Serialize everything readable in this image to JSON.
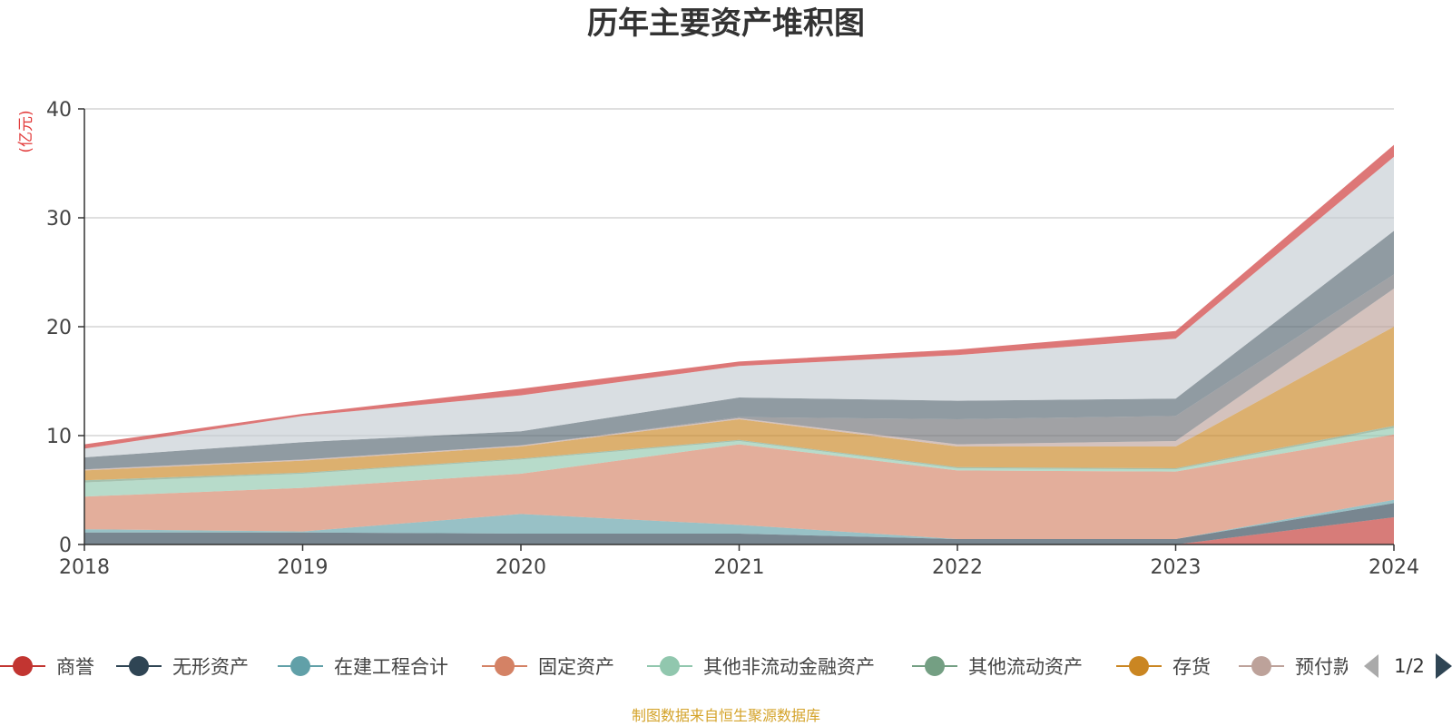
{
  "title": "历年主要资产堆积图",
  "unit_label": "(亿元)",
  "source_note": "制图数据来自恒生聚源数据库",
  "legend_page": "1/2",
  "chart_data": {
    "type": "area",
    "stacked": true,
    "title": "历年主要资产堆积图",
    "ylabel": "(亿元)",
    "xlabel": "",
    "categories": [
      "2018",
      "2019",
      "2020",
      "2021",
      "2022",
      "2023",
      "2024"
    ],
    "ylim": [
      0,
      40
    ],
    "yticks": [
      0,
      10,
      20,
      30,
      40
    ],
    "grid": true,
    "legend_position": "bottom",
    "series": [
      {
        "name": "商誉",
        "color": "#c23531",
        "legend": true,
        "values": [
          0,
          0,
          0,
          0,
          0,
          0,
          2.5
        ]
      },
      {
        "name": "无形资产",
        "color": "#2f4554",
        "legend": true,
        "values": [
          1.1,
          1.1,
          1.0,
          1.0,
          0.5,
          0.5,
          1.3
        ]
      },
      {
        "name": "在建工程合计",
        "color": "#61a0a8",
        "legend": true,
        "values": [
          0.3,
          0.1,
          1.8,
          0.8,
          0,
          0,
          0.3
        ]
      },
      {
        "name": "固定资产",
        "color": "#d48265",
        "legend": true,
        "values": [
          3.0,
          4.0,
          3.7,
          7.4,
          6.3,
          6.2,
          6.0
        ]
      },
      {
        "name": "其他非流动金融资产",
        "color": "#91c7ae",
        "legend": true,
        "values": [
          1.3,
          1.3,
          1.3,
          0.3,
          0.2,
          0.2,
          0.6
        ]
      },
      {
        "name": "其他流动资产",
        "color": "#749f83",
        "legend": true,
        "values": [
          0.2,
          0.1,
          0.1,
          0.1,
          0.1,
          0.1,
          0.2
        ]
      },
      {
        "name": "存货",
        "color": "#ca8622",
        "legend": true,
        "values": [
          0.9,
          1.1,
          1.1,
          1.9,
          1.9,
          2.0,
          9.1
        ]
      },
      {
        "name": "预付款项",
        "color": "#bda29a",
        "legend": true,
        "values": [
          0.1,
          0.1,
          0.1,
          0.1,
          0.2,
          0.5,
          3.5
        ]
      },
      {
        "name": "",
        "color": "#6e7074",
        "legend": false,
        "values": [
          0,
          0,
          0,
          0.1,
          2.3,
          2.3,
          1.3
        ]
      },
      {
        "name": "",
        "color": "#546570",
        "legend": false,
        "values": [
          1.1,
          1.6,
          1.3,
          1.8,
          1.7,
          1.6,
          4.0
        ]
      },
      {
        "name": "",
        "color": "#c4ccd3",
        "legend": false,
        "values": [
          0.8,
          2.4,
          3.3,
          2.9,
          4.2,
          5.5,
          6.8
        ]
      },
      {
        "name": "",
        "color": "#d14a4a",
        "legend": false,
        "values": [
          0.4,
          0.2,
          0.6,
          0.4,
          0.5,
          0.7,
          1.1
        ]
      }
    ]
  }
}
